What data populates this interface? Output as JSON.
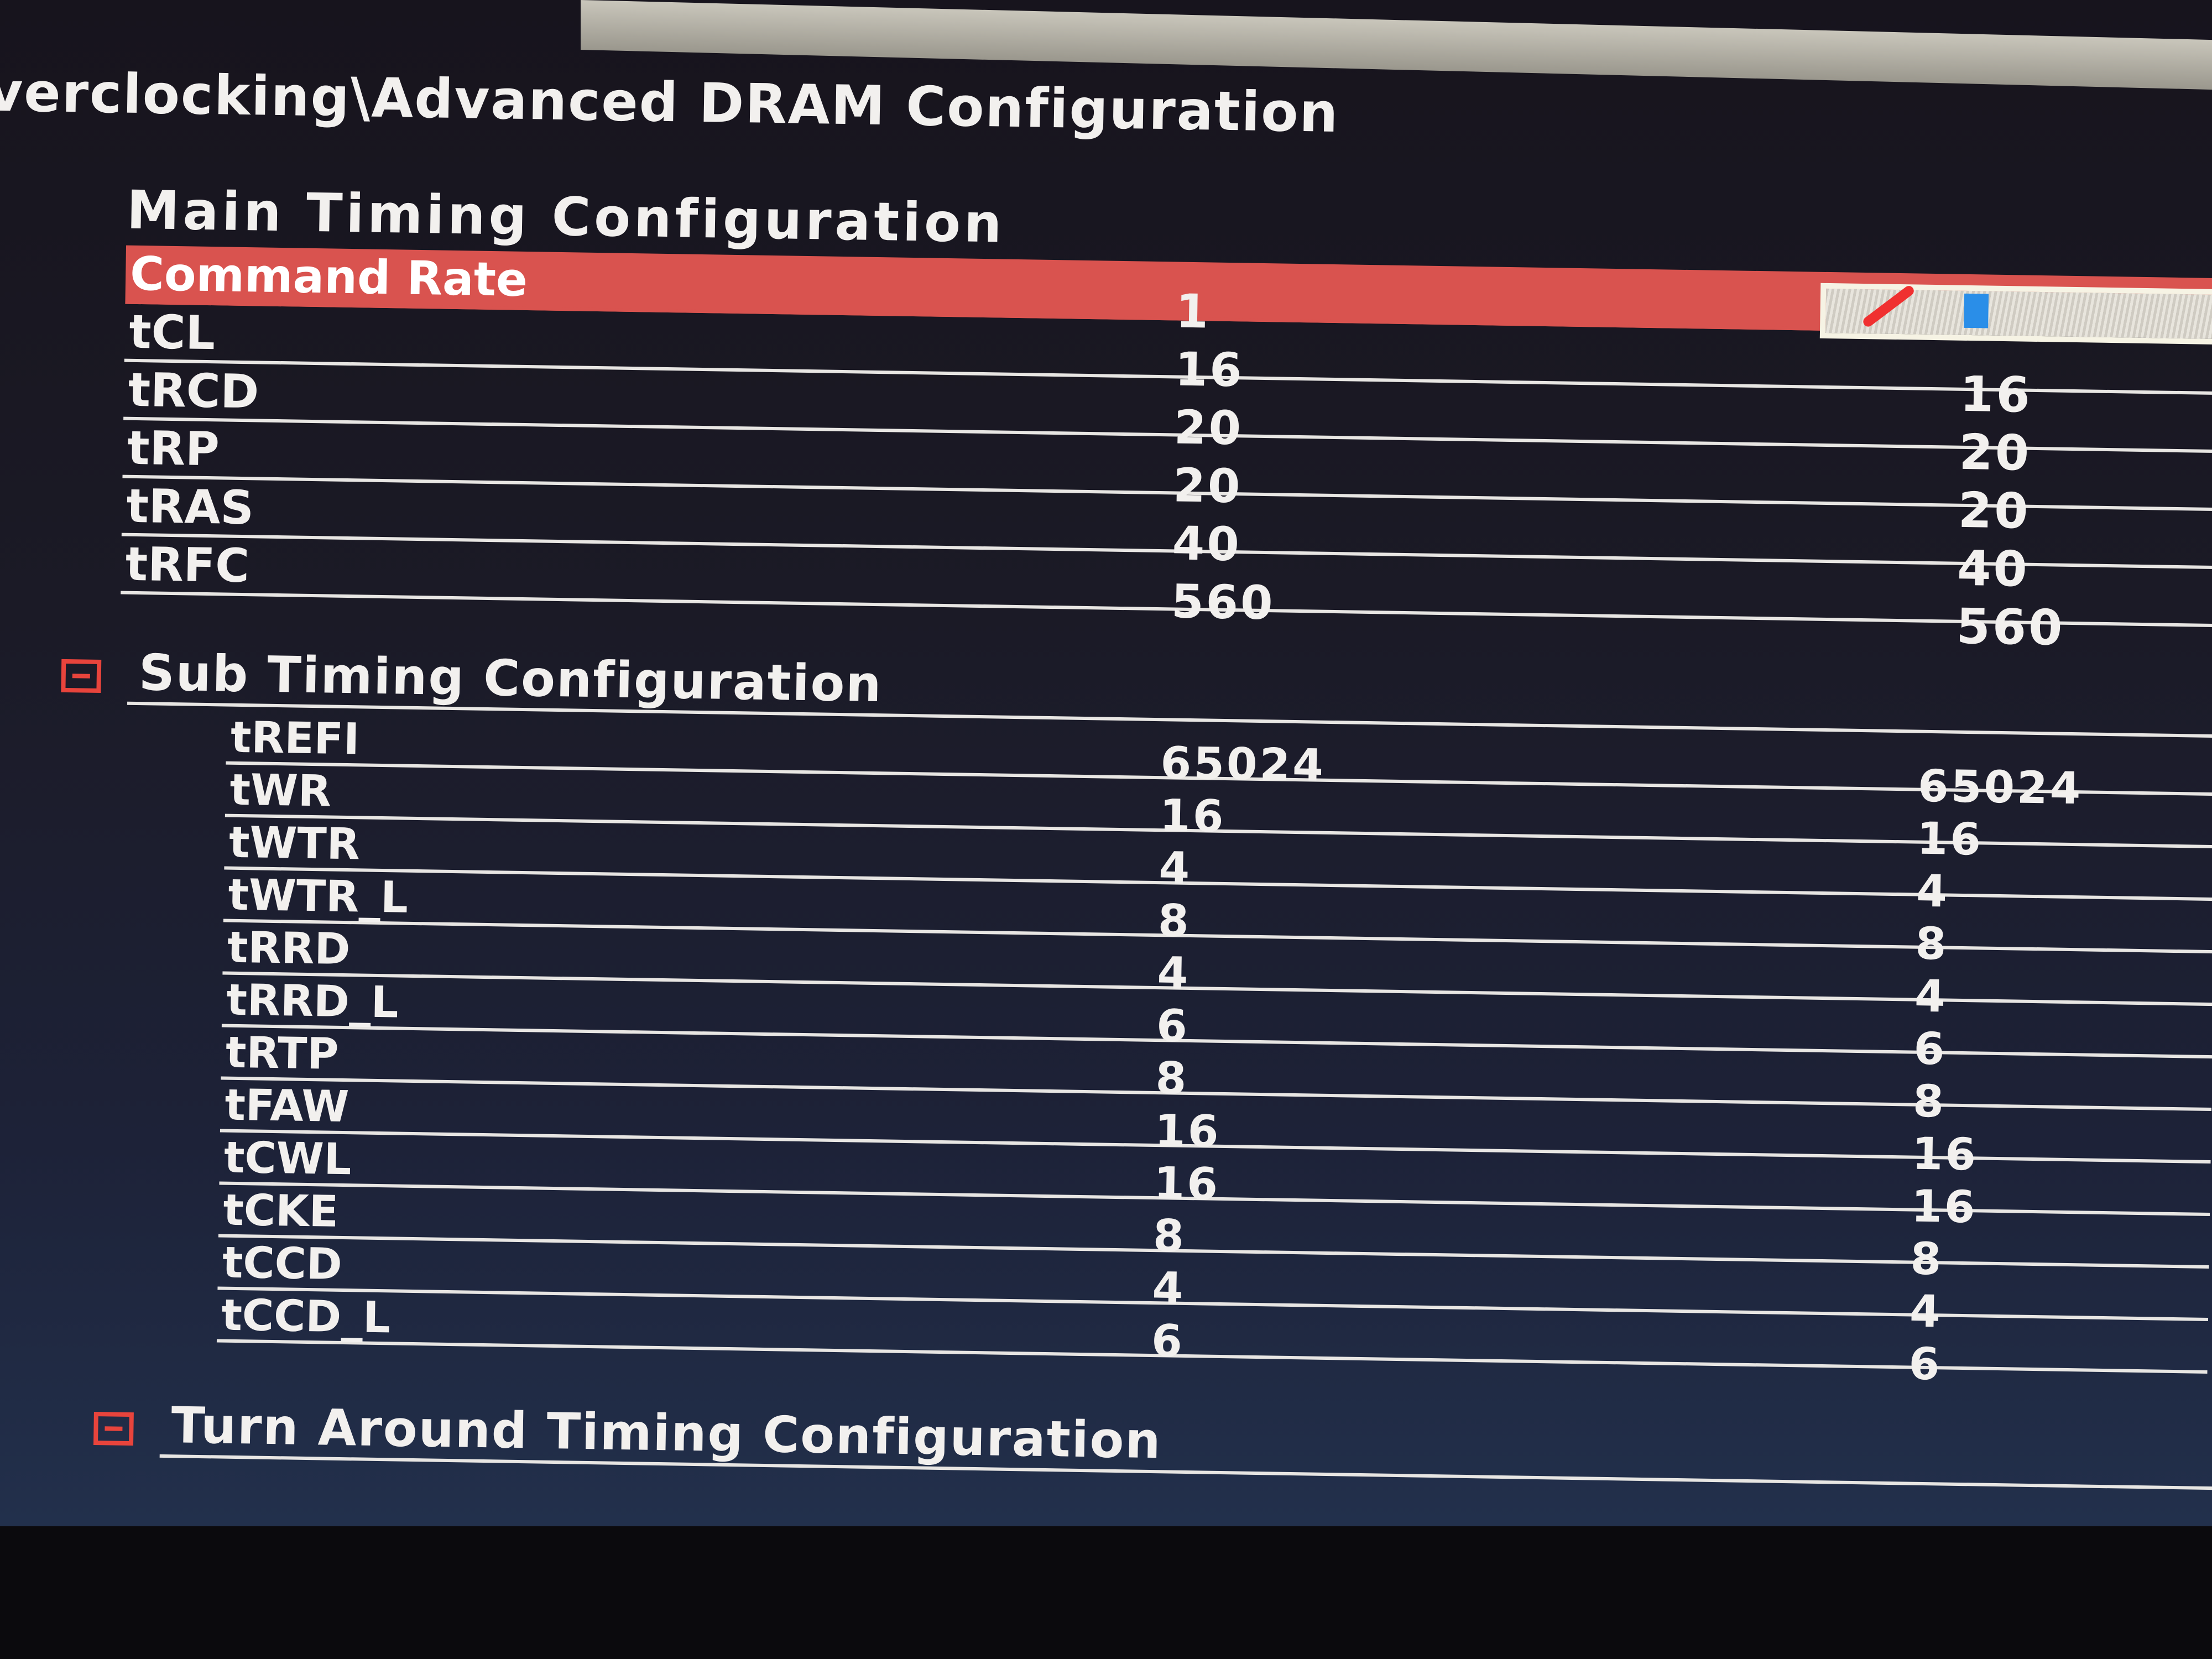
{
  "breadcrumb": "verclocking\\Advanced DRAM Configuration",
  "main_section": {
    "title": "Main Timing Configuration",
    "rows": [
      {
        "label": "Command Rate",
        "value": "1",
        "current": "",
        "selected": true
      },
      {
        "label": "tCL",
        "value": "16",
        "current": "16"
      },
      {
        "label": "tRCD",
        "value": "20",
        "current": "20"
      },
      {
        "label": "tRP",
        "value": "20",
        "current": "20"
      },
      {
        "label": "tRAS",
        "value": "40",
        "current": "40"
      },
      {
        "label": "tRFC",
        "value": "560",
        "current": "560"
      }
    ]
  },
  "sub_section": {
    "title": "Sub Timing Configuration",
    "rows": [
      {
        "label": "tREFI",
        "value": "65024",
        "current": "65024"
      },
      {
        "label": "tWR",
        "value": "16",
        "current": "16"
      },
      {
        "label": "tWTR",
        "value": "4",
        "current": "4"
      },
      {
        "label": "tWTR_L",
        "value": "8",
        "current": "8"
      },
      {
        "label": "tRRD",
        "value": "4",
        "current": "4"
      },
      {
        "label": "tRRD_L",
        "value": "6",
        "current": "6"
      },
      {
        "label": "tRTP",
        "value": "8",
        "current": "8"
      },
      {
        "label": "tFAW",
        "value": "16",
        "current": "16"
      },
      {
        "label": "tCWL",
        "value": "16",
        "current": "16"
      },
      {
        "label": "tCKE",
        "value": "8",
        "current": "8"
      },
      {
        "label": "tCCD",
        "value": "4",
        "current": "4"
      },
      {
        "label": "tCCD_L",
        "value": "6",
        "current": "6"
      }
    ]
  },
  "turn_around_section": {
    "title": "Turn Around Timing Configuration"
  },
  "colors": {
    "selection": "#d9534f",
    "collapse_icon": "#e8443c",
    "cursor": "#2a8ee8"
  },
  "icons": {
    "collapse": "minus-box-icon",
    "edit": "pencil-icon"
  }
}
